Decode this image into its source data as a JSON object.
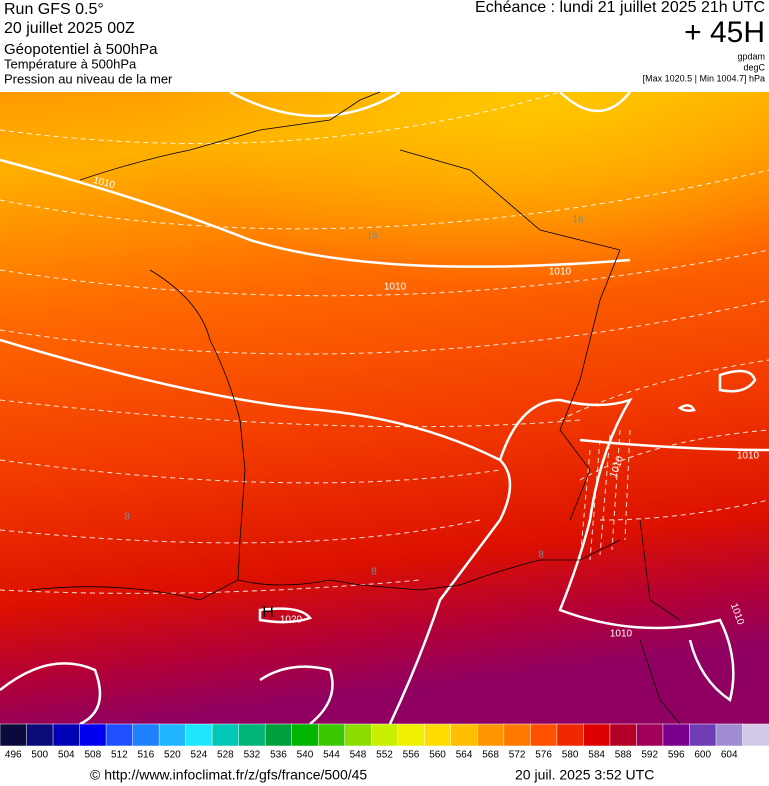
{
  "header": {
    "run": "Run GFS 0.5°",
    "date": "20 juillet 2025 00Z",
    "field1": "Géopotentiel à 500hPa",
    "field2": "Température à 500hPa",
    "field3": "Pression au niveau de la mer",
    "echeance": "Echéance : lundi 21 juillet 2025 21h UTC",
    "lead": "+ 45H",
    "unit1": "gpdam",
    "unit2": "degC",
    "range": "[Max 1020.5 | Min 1004.7] hPa"
  },
  "map": {
    "isobar_labels": [
      1010,
      1010,
      1010,
      1010,
      1010,
      1010,
      1010,
      1020
    ],
    "high_label": "H",
    "temp_labels": [
      16,
      16,
      8,
      8,
      8
    ]
  },
  "colorbar": {
    "colors": [
      "#0a0a3c",
      "#0a0a78",
      "#0000b4",
      "#0000f0",
      "#1e50ff",
      "#1e82ff",
      "#1eb4ff",
      "#1ee6ff",
      "#00c8b4",
      "#00b478",
      "#00a03c",
      "#00b400",
      "#3cc800",
      "#8cdc00",
      "#c8f000",
      "#f0f000",
      "#ffdc00",
      "#ffbe00",
      "#ff9600",
      "#ff7800",
      "#ff5000",
      "#f02800",
      "#dc0000",
      "#b40028",
      "#a0005a",
      "#78008c",
      "#6e3cb4",
      "#a08cd2",
      "#d2c8e6"
    ],
    "labels": [
      496,
      500,
      504,
      508,
      512,
      516,
      520,
      524,
      528,
      532,
      536,
      540,
      544,
      548,
      552,
      556,
      560,
      564,
      568,
      572,
      576,
      580,
      584,
      588,
      592,
      596,
      600,
      604
    ]
  },
  "footer": {
    "url": "© http://www.infoclimat.fr/z/gfs/france/500/45",
    "time": "20 juil. 2025  3:52 UTC"
  }
}
